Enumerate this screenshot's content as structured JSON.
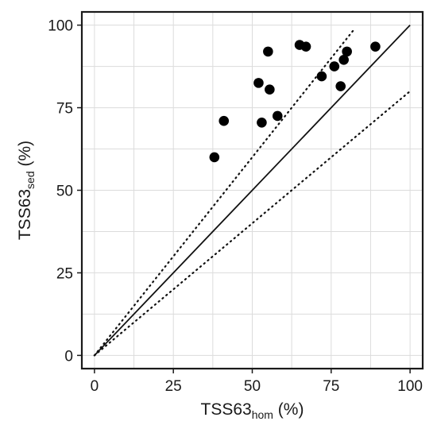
{
  "chart_data": {
    "type": "scatter",
    "xlabel": {
      "main": "TSS63",
      "sub": "hom",
      "suffix": " (%)"
    },
    "ylabel": {
      "main": "TSS63",
      "sub": "sed",
      "suffix": " (%)"
    },
    "xlim": [
      -4,
      104
    ],
    "ylim": [
      -4,
      104
    ],
    "x_ticks": [
      0,
      25,
      50,
      75,
      100
    ],
    "y_ticks": [
      0,
      25,
      50,
      75,
      100
    ],
    "grid": true,
    "points": [
      {
        "x": 38,
        "y": 60
      },
      {
        "x": 41,
        "y": 71
      },
      {
        "x": 52,
        "y": 82.5
      },
      {
        "x": 53,
        "y": 70.5
      },
      {
        "x": 55,
        "y": 92
      },
      {
        "x": 55.5,
        "y": 80.5
      },
      {
        "x": 58,
        "y": 72.5
      },
      {
        "x": 65,
        "y": 94
      },
      {
        "x": 67,
        "y": 93.5
      },
      {
        "x": 72,
        "y": 84.5
      },
      {
        "x": 76,
        "y": 87.5
      },
      {
        "x": 78,
        "y": 81.5
      },
      {
        "x": 79,
        "y": 89.5
      },
      {
        "x": 80,
        "y": 92
      },
      {
        "x": 89,
        "y": 93.5
      }
    ],
    "reference_lines": [
      {
        "style": "solid",
        "x": [
          0,
          100
        ],
        "y": [
          0,
          100
        ]
      },
      {
        "style": "dotted",
        "x": [
          0,
          82.5
        ],
        "y": [
          0,
          99
        ]
      },
      {
        "style": "dotted",
        "x": [
          0,
          100
        ],
        "y": [
          0,
          80
        ]
      }
    ]
  }
}
